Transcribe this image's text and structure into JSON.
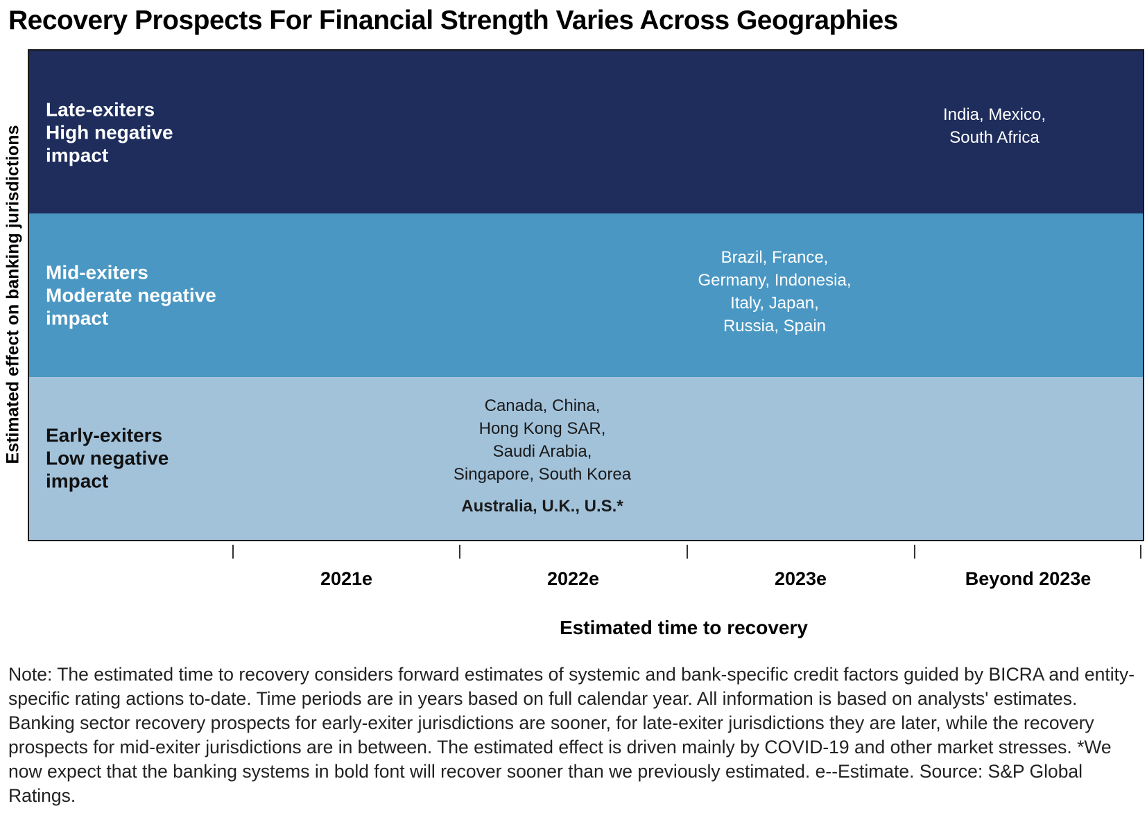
{
  "title": "Recovery Prospects For Financial Strength Varies Across Geographies",
  "chart_data": {
    "type": "table",
    "title": "Recovery Prospects For Financial Strength Varies Across Geographies",
    "xlabel": "Estimated time to recovery",
    "ylabel": "Estimated effect on banking jurisdictions",
    "x_categories": [
      "2021e",
      "2022e",
      "2023e",
      "Beyond 2023e"
    ],
    "y_categories": [
      {
        "name": "Late-exiters",
        "impact": "High negative impact",
        "label": "Late-exiters\nHigh negative\nimpact",
        "color": "#1e2d5c"
      },
      {
        "name": "Mid-exiters",
        "impact": "Moderate negative impact",
        "label": "Mid-exiters\nModerate negative\nimpact",
        "color": "#4a97c3"
      },
      {
        "name": "Early-exiters",
        "impact": "Low negative impact",
        "label": "Early-exiters\nLow negative\nimpact",
        "color": "#a2c2da"
      }
    ],
    "cells": [
      {
        "row": "Late-exiters",
        "col": "Beyond 2023e",
        "text": "India, Mexico,\nSouth Africa",
        "countries": [
          "India",
          "Mexico",
          "South Africa"
        ],
        "bold": false
      },
      {
        "row": "Mid-exiters",
        "col": "2023e",
        "text": "Brazil, France,\nGermany, Indonesia,\nItaly, Japan,\nRussia, Spain",
        "countries": [
          "Brazil",
          "France",
          "Germany",
          "Indonesia",
          "Italy",
          "Japan",
          "Russia",
          "Spain"
        ],
        "bold": false
      },
      {
        "row": "Early-exiters",
        "col": "2022e",
        "text": "Canada, China,\nHong Kong SAR,\nSaudi Arabia,\nSingapore, South Korea",
        "countries": [
          "Canada",
          "China",
          "Hong Kong SAR",
          "Saudi Arabia",
          "Singapore",
          "South Korea"
        ],
        "bold": false
      },
      {
        "row": "Early-exiters",
        "col": "2022e",
        "text": "Australia, U.K., U.S.*",
        "countries": [
          "Australia",
          "U.K.",
          "U.S."
        ],
        "bold": true
      }
    ]
  },
  "note": "Note: The estimated time to recovery considers forward estimates of systemic and bank-specific credit factors guided by BICRA and entity-specific rating actions to-date. Time periods are in years based on full calendar year. All information is based on analysts' estimates. Banking sector recovery prospects for early-exiter jurisdictions are sooner, for late-exiter jurisdictions they are later, while the recovery prospects for mid-exiter jurisdictions are in between. The estimated effect is driven mainly by COVID-19 and other market stresses. *We now expect that the banking systems in bold font will recover sooner than we previously estimated. e--Estimate. Source: S&P Global Ratings."
}
